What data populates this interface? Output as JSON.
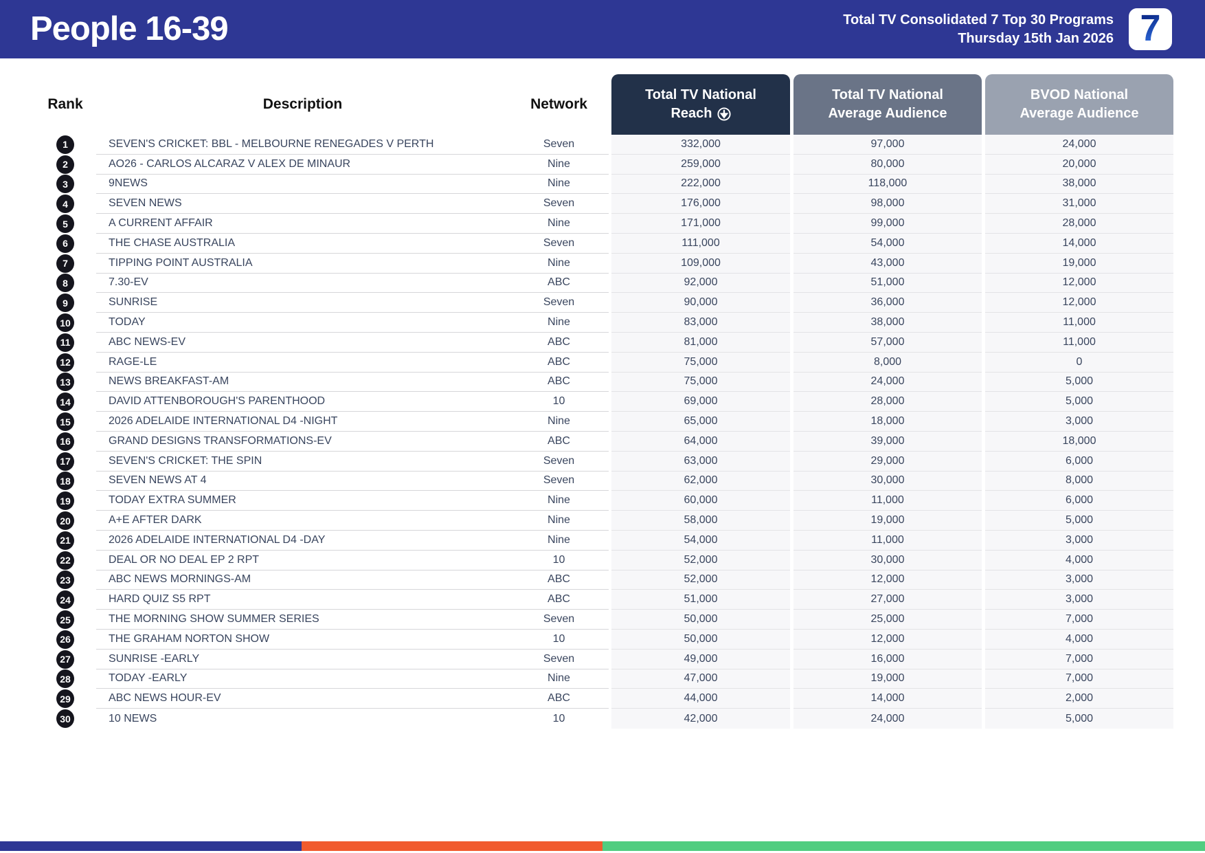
{
  "header": {
    "title": "People 16-39",
    "subtitle_line1": "Total TV Consolidated 7 Top 30 Programs",
    "subtitle_line2": "Thursday 15th Jan 2026",
    "logo_text": "7"
  },
  "table": {
    "columns": {
      "rank": "Rank",
      "description": "Description",
      "network": "Network",
      "reach_line1": "Total TV National",
      "reach_line2": "Reach",
      "avg_line1": "Total TV National",
      "avg_line2": "Average Audience",
      "bvod_line1": "BVOD National",
      "bvod_line2": "Average Audience",
      "sort_icon": "circle-arrow-down"
    },
    "rows": [
      {
        "rank": "1",
        "description": "SEVEN'S CRICKET: BBL - MELBOURNE RENEGADES V PERTH",
        "network": "Seven",
        "reach": "332,000",
        "avg": "97,000",
        "bvod": "24,000"
      },
      {
        "rank": "2",
        "description": "AO26 - CARLOS ALCARAZ V ALEX DE MINAUR",
        "network": "Nine",
        "reach": "259,000",
        "avg": "80,000",
        "bvod": "20,000"
      },
      {
        "rank": "3",
        "description": "9NEWS",
        "network": "Nine",
        "reach": "222,000",
        "avg": "118,000",
        "bvod": "38,000"
      },
      {
        "rank": "4",
        "description": "SEVEN NEWS",
        "network": "Seven",
        "reach": "176,000",
        "avg": "98,000",
        "bvod": "31,000"
      },
      {
        "rank": "5",
        "description": "A CURRENT AFFAIR",
        "network": "Nine",
        "reach": "171,000",
        "avg": "99,000",
        "bvod": "28,000"
      },
      {
        "rank": "6",
        "description": "THE CHASE AUSTRALIA",
        "network": "Seven",
        "reach": "111,000",
        "avg": "54,000",
        "bvod": "14,000"
      },
      {
        "rank": "7",
        "description": "TIPPING POINT AUSTRALIA",
        "network": "Nine",
        "reach": "109,000",
        "avg": "43,000",
        "bvod": "19,000"
      },
      {
        "rank": "8",
        "description": "7.30-EV",
        "network": "ABC",
        "reach": "92,000",
        "avg": "51,000",
        "bvod": "12,000"
      },
      {
        "rank": "9",
        "description": "SUNRISE",
        "network": "Seven",
        "reach": "90,000",
        "avg": "36,000",
        "bvod": "12,000"
      },
      {
        "rank": "10",
        "description": "TODAY",
        "network": "Nine",
        "reach": "83,000",
        "avg": "38,000",
        "bvod": "11,000"
      },
      {
        "rank": "11",
        "description": "ABC NEWS-EV",
        "network": "ABC",
        "reach": "81,000",
        "avg": "57,000",
        "bvod": "11,000"
      },
      {
        "rank": "12",
        "description": "RAGE-LE",
        "network": "ABC",
        "reach": "75,000",
        "avg": "8,000",
        "bvod": "0"
      },
      {
        "rank": "13",
        "description": "NEWS BREAKFAST-AM",
        "network": "ABC",
        "reach": "75,000",
        "avg": "24,000",
        "bvod": "5,000"
      },
      {
        "rank": "14",
        "description": "DAVID ATTENBOROUGH'S PARENTHOOD",
        "network": "10",
        "reach": "69,000",
        "avg": "28,000",
        "bvod": "5,000"
      },
      {
        "rank": "15",
        "description": "2026 ADELAIDE INTERNATIONAL D4 -NIGHT",
        "network": "Nine",
        "reach": "65,000",
        "avg": "18,000",
        "bvod": "3,000"
      },
      {
        "rank": "16",
        "description": "GRAND DESIGNS TRANSFORMATIONS-EV",
        "network": "ABC",
        "reach": "64,000",
        "avg": "39,000",
        "bvod": "18,000"
      },
      {
        "rank": "17",
        "description": "SEVEN'S CRICKET: THE SPIN",
        "network": "Seven",
        "reach": "63,000",
        "avg": "29,000",
        "bvod": "6,000"
      },
      {
        "rank": "18",
        "description": "SEVEN NEWS AT 4",
        "network": "Seven",
        "reach": "62,000",
        "avg": "30,000",
        "bvod": "8,000"
      },
      {
        "rank": "19",
        "description": "TODAY EXTRA SUMMER",
        "network": "Nine",
        "reach": "60,000",
        "avg": "11,000",
        "bvod": "6,000"
      },
      {
        "rank": "20",
        "description": "A+E AFTER DARK",
        "network": "Nine",
        "reach": "58,000",
        "avg": "19,000",
        "bvod": "5,000"
      },
      {
        "rank": "21",
        "description": "2026 ADELAIDE INTERNATIONAL D4 -DAY",
        "network": "Nine",
        "reach": "54,000",
        "avg": "11,000",
        "bvod": "3,000"
      },
      {
        "rank": "22",
        "description": "DEAL OR NO DEAL EP 2 RPT",
        "network": "10",
        "reach": "52,000",
        "avg": "30,000",
        "bvod": "4,000"
      },
      {
        "rank": "23",
        "description": "ABC NEWS MORNINGS-AM",
        "network": "ABC",
        "reach": "52,000",
        "avg": "12,000",
        "bvod": "3,000"
      },
      {
        "rank": "24",
        "description": "HARD QUIZ S5 RPT",
        "network": "ABC",
        "reach": "51,000",
        "avg": "27,000",
        "bvod": "3,000"
      },
      {
        "rank": "25",
        "description": "THE MORNING SHOW SUMMER SERIES",
        "network": "Seven",
        "reach": "50,000",
        "avg": "25,000",
        "bvod": "7,000"
      },
      {
        "rank": "26",
        "description": "THE GRAHAM NORTON SHOW",
        "network": "10",
        "reach": "50,000",
        "avg": "12,000",
        "bvod": "4,000"
      },
      {
        "rank": "27",
        "description": "SUNRISE -EARLY",
        "network": "Seven",
        "reach": "49,000",
        "avg": "16,000",
        "bvod": "7,000"
      },
      {
        "rank": "28",
        "description": "TODAY -EARLY",
        "network": "Nine",
        "reach": "47,000",
        "avg": "19,000",
        "bvod": "7,000"
      },
      {
        "rank": "29",
        "description": "ABC NEWS HOUR-EV",
        "network": "ABC",
        "reach": "44,000",
        "avg": "14,000",
        "bvod": "2,000"
      },
      {
        "rank": "30",
        "description": "10 NEWS",
        "network": "10",
        "reach": "42,000",
        "avg": "24,000",
        "bvod": "5,000"
      }
    ]
  },
  "colors": {
    "banner": "#2e3794",
    "reach_header": "#223149",
    "avg_header": "#6a7487",
    "bvod_header": "#9aa2b0",
    "rank_circle": "#15151d",
    "cell_background": "#f7f7f9"
  },
  "footer_bar": {
    "segments": [
      {
        "name": "blue-segment",
        "color": "#2e3794",
        "width_pct": 25
      },
      {
        "name": "orange-segment",
        "color": "#f15b2e",
        "width_pct": 25
      },
      {
        "name": "green-segment",
        "color": "#50cd80",
        "width_pct": 50
      }
    ]
  }
}
